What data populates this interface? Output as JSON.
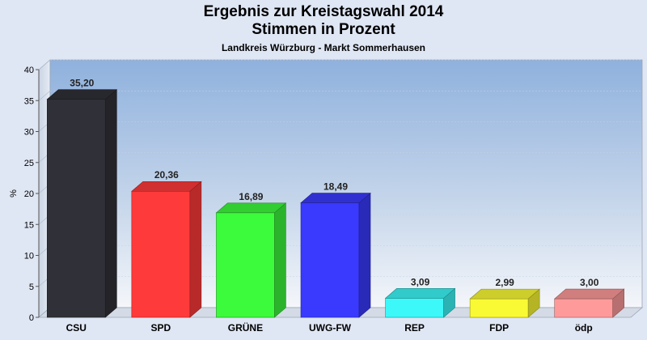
{
  "chart_data": {
    "type": "bar",
    "title": "Ergebnis zur Kreistagswahl 2014",
    "subtitle": "Stimmen in Prozent",
    "caption": "Landkreis Würzburg - Markt Sommerhausen",
    "ylabel": "%",
    "xlabel": "",
    "ylim": [
      0,
      40
    ],
    "yticks": [
      0,
      5,
      10,
      15,
      20,
      25,
      30,
      35,
      40
    ],
    "grid": true,
    "categories": [
      "CSU",
      "SPD",
      "GRÜNE",
      "UWG-FW",
      "REP",
      "FDP",
      "ödp"
    ],
    "values": [
      35.2,
      20.36,
      16.89,
      18.49,
      3.09,
      2.99,
      3.0
    ],
    "value_labels": [
      "35,20",
      "20,36",
      "16,89",
      "18,49",
      "3,09",
      "2,99",
      "3,00"
    ],
    "colors": [
      "#303038",
      "#ff3a3a",
      "#3cfa3c",
      "#3a3aff",
      "#3cf8f8",
      "#fafa34",
      "#ff9a9a"
    ]
  }
}
